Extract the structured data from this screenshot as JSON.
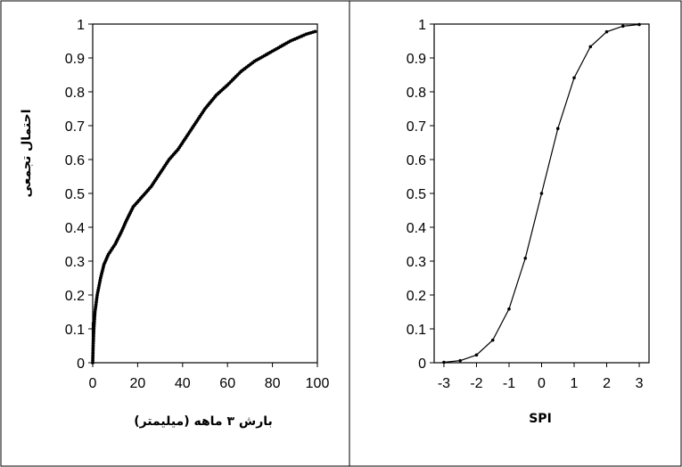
{
  "chart_data": [
    {
      "type": "scatter",
      "xlabel": "بارش ۳ ماهه (میلیمتر)",
      "ylabel": "احتمال تجمعی",
      "xlim": [
        0,
        100
      ],
      "ylim": [
        0,
        1
      ],
      "xticks": [
        "0",
        "20",
        "40",
        "60",
        "80",
        "100"
      ],
      "yticks": [
        "0",
        "0.1",
        "0.2",
        "0.3",
        "0.4",
        "0.5",
        "0.6",
        "0.7",
        "0.8",
        "0.9",
        "1"
      ],
      "curve_points": [
        [
          0,
          0.0
        ],
        [
          0.2,
          0.05
        ],
        [
          0.5,
          0.1
        ],
        [
          1,
          0.15
        ],
        [
          2,
          0.2
        ],
        [
          3.5,
          0.25
        ],
        [
          5,
          0.29
        ],
        [
          7,
          0.32
        ],
        [
          10,
          0.35
        ],
        [
          13,
          0.39
        ],
        [
          15,
          0.42
        ],
        [
          18,
          0.46
        ],
        [
          22,
          0.49
        ],
        [
          26,
          0.52
        ],
        [
          30,
          0.56
        ],
        [
          34,
          0.6
        ],
        [
          38,
          0.63
        ],
        [
          42,
          0.67
        ],
        [
          46,
          0.71
        ],
        [
          50,
          0.75
        ],
        [
          55,
          0.79
        ],
        [
          60,
          0.82
        ],
        [
          66,
          0.86
        ],
        [
          72,
          0.89
        ],
        [
          80,
          0.92
        ],
        [
          88,
          0.95
        ],
        [
          95,
          0.97
        ],
        [
          100,
          0.98
        ]
      ]
    },
    {
      "type": "line",
      "xlabel": "SPI",
      "ylabel": "",
      "xlim": [
        -3.3,
        3.3
      ],
      "ylim": [
        0,
        1
      ],
      "xticks": [
        "-3",
        "-2",
        "-1",
        "0",
        "1",
        "2",
        "3"
      ],
      "yticks": [
        "0",
        "0.1",
        "0.2",
        "0.3",
        "0.4",
        "0.5",
        "0.6",
        "0.7",
        "0.8",
        "0.9",
        "1"
      ],
      "x": [
        -3.0,
        -2.5,
        -2.0,
        -1.5,
        -1.0,
        -0.5,
        0.0,
        0.5,
        1.0,
        1.5,
        2.0,
        2.5,
        3.0
      ],
      "y": [
        0.0013,
        0.0062,
        0.0228,
        0.0668,
        0.1587,
        0.3085,
        0.5,
        0.6915,
        0.8413,
        0.9332,
        0.9772,
        0.9938,
        0.9987
      ]
    }
  ]
}
